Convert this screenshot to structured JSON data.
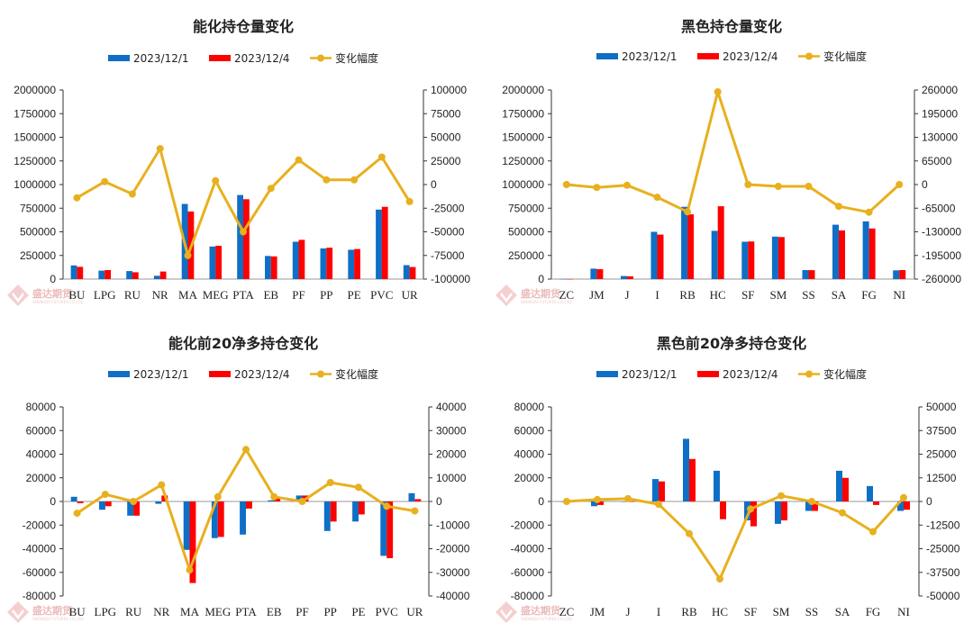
{
  "colors": {
    "series1": "#0f6fc6",
    "series2": "#ff0000",
    "line": "#e8b01e",
    "axis": "#333333"
  },
  "watermark": {
    "brand_name": "盛达期货",
    "brand_sub": "SHENGDA FUTURES CO.,LTD."
  },
  "chart_data": [
    {
      "type": "bar",
      "title": "能化持仓量变化",
      "legend": [
        "2023/12/1",
        "2023/12/4",
        "变化幅度"
      ],
      "legend_position": "top",
      "categories": [
        "BU",
        "LPG",
        "RU",
        "NR",
        "MA",
        "MEG",
        "PTA",
        "EB",
        "PF",
        "PP",
        "PE",
        "PVC",
        "UR"
      ],
      "series": [
        {
          "name": "2023/12/1",
          "values": [
            145000,
            90000,
            85000,
            35000,
            795000,
            345000,
            890000,
            245000,
            395000,
            325000,
            310000,
            735000,
            148000
          ]
        },
        {
          "name": "2023/12/4",
          "values": [
            130000,
            95000,
            72000,
            80000,
            715000,
            352000,
            845000,
            240000,
            415000,
            332000,
            318000,
            765000,
            128000
          ]
        },
        {
          "name": "变化幅度",
          "values": [
            -14000,
            3000,
            -10000,
            38000,
            -75000,
            4000,
            -50000,
            -4000,
            26000,
            5000,
            5000,
            29000,
            -18000
          ]
        }
      ],
      "y_left": {
        "min": 0,
        "max": 2000000,
        "ticks": [
          "0",
          "250000",
          "500000",
          "750000",
          "1000000",
          "1250000",
          "1500000",
          "1750000",
          "2000000"
        ]
      },
      "y_right": {
        "min": -100000,
        "max": 100000,
        "ticks": [
          "-100000",
          "-75000",
          "-50000",
          "-25000",
          "0",
          "25000",
          "50000",
          "75000",
          "100000"
        ]
      },
      "grid": false
    },
    {
      "type": "bar",
      "title": "黑色持仓量变化",
      "legend": [
        "2023/12/1",
        "2023/12/4",
        "变化幅度"
      ],
      "legend_position": "top",
      "categories": [
        "ZC",
        "JM",
        "J",
        "I",
        "RB",
        "HC",
        "SF",
        "SM",
        "SS",
        "SA",
        "FG",
        "NI"
      ],
      "series": [
        {
          "name": "2023/12/1",
          "values": [
            2000,
            110000,
            32000,
            500000,
            765000,
            510000,
            395000,
            450000,
            95000,
            575000,
            610000,
            92000
          ]
        },
        {
          "name": "2023/12/4",
          "values": [
            1000,
            105000,
            30000,
            470000,
            685000,
            770000,
            398000,
            445000,
            94000,
            515000,
            535000,
            95000
          ]
        },
        {
          "name": "变化幅度",
          "values": [
            0,
            -8000,
            -2000,
            -35000,
            -75000,
            255000,
            0,
            -5000,
            -5000,
            -60000,
            -76000,
            0
          ]
        }
      ],
      "y_left": {
        "min": 0,
        "max": 2000000,
        "ticks": [
          "0",
          "250000",
          "500000",
          "750000",
          "1000000",
          "1250000",
          "1500000",
          "1750000",
          "2000000"
        ]
      },
      "y_right": {
        "min": -260000,
        "max": 260000,
        "ticks": [
          "-260000",
          "-195000",
          "-130000",
          "-65000",
          "0",
          "65000",
          "130000",
          "195000",
          "260000"
        ]
      },
      "grid": false
    },
    {
      "type": "bar",
      "title": "能化前20净多持仓变化",
      "legend": [
        "2023/12/1",
        "2023/12/4",
        "变化幅度"
      ],
      "legend_position": "top",
      "categories": [
        "BU",
        "LPG",
        "RU",
        "NR",
        "MA",
        "MEG",
        "PTA",
        "EB",
        "PF",
        "PP",
        "PE",
        "PVC",
        "UR"
      ],
      "series": [
        {
          "name": "2023/12/1",
          "values": [
            4000,
            -7000,
            -12000,
            -2000,
            -41000,
            -31000,
            -28000,
            1000,
            5000,
            -25000,
            -17000,
            -46000,
            7000
          ]
        },
        {
          "name": "2023/12/4",
          "values": [
            -1500,
            -4000,
            -12000,
            5000,
            -69000,
            -30000,
            -6000,
            3000,
            5000,
            -17000,
            -11000,
            -48000,
            2000
          ]
        },
        {
          "name": "变化幅度",
          "values": [
            -5000,
            3000,
            0,
            7000,
            -29000,
            2000,
            22000,
            2000,
            0,
            8000,
            6000,
            -2000,
            -4000
          ]
        }
      ],
      "y_left": {
        "min": -80000,
        "max": 80000,
        "ticks": [
          "-80000",
          "-60000",
          "-40000",
          "-20000",
          "0",
          "20000",
          "40000",
          "60000",
          "80000"
        ]
      },
      "y_right": {
        "min": -40000,
        "max": 40000,
        "ticks": [
          "-40000",
          "-30000",
          "-20000",
          "-10000",
          "0",
          "10000",
          "20000",
          "30000",
          "40000"
        ]
      },
      "grid": false
    },
    {
      "type": "bar",
      "title": "黑色前20净多持仓变化",
      "legend": [
        "2023/12/1",
        "2023/12/4",
        "变化幅度"
      ],
      "legend_position": "top",
      "categories": [
        "ZC",
        "JM",
        "J",
        "I",
        "RB",
        "HC",
        "SF",
        "SM",
        "SS",
        "SA",
        "FG",
        "NI"
      ],
      "series": [
        {
          "name": "2023/12/1",
          "values": [
            0,
            -4000,
            0,
            19000,
            53000,
            26000,
            -16000,
            -19000,
            -8000,
            26000,
            13000,
            -8000
          ]
        },
        {
          "name": "2023/12/4",
          "values": [
            0,
            -3000,
            0,
            17000,
            36000,
            -15000,
            -21000,
            -16000,
            -8000,
            20000,
            -3000,
            -7000
          ]
        },
        {
          "name": "变化幅度",
          "values": [
            0,
            1000,
            1500,
            -1500,
            -17000,
            -41000,
            -4000,
            3000,
            0,
            -6000,
            -16000,
            2000
          ]
        }
      ],
      "y_left": {
        "min": -80000,
        "max": 80000,
        "ticks": [
          "-80000",
          "-60000",
          "-40000",
          "-20000",
          "0",
          "20000",
          "40000",
          "60000",
          "80000"
        ]
      },
      "y_right": {
        "min": -50000,
        "max": 50000,
        "ticks": [
          "-50000",
          "-37500",
          "-25000",
          "-12500",
          "0",
          "12500",
          "25000",
          "37500",
          "50000"
        ]
      },
      "grid": false
    }
  ]
}
